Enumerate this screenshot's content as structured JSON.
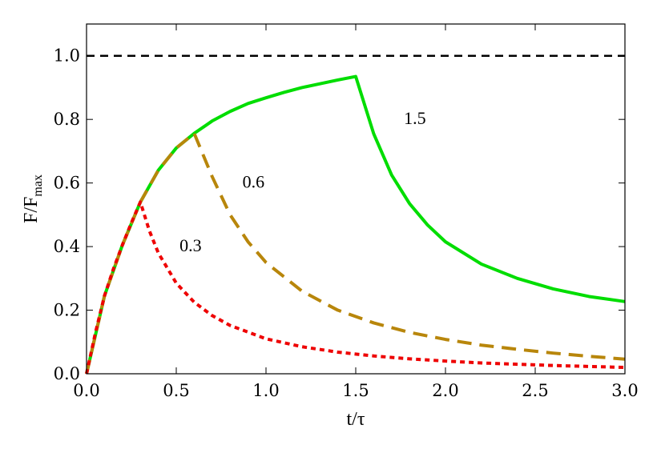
{
  "chart_data": {
    "type": "line",
    "xlabel": "t/τ",
    "ylabel": {
      "base": "F/F",
      "subscript": "max"
    },
    "xlim": [
      0.0,
      3.0
    ],
    "ylim": [
      0.0,
      1.1
    ],
    "xticks": [
      "0.0",
      "0.5",
      "1.0",
      "1.5",
      "2.0",
      "2.5",
      "3.0"
    ],
    "yticks": [
      "0.0",
      "0.2",
      "0.4",
      "0.6",
      "0.8",
      "1.0"
    ],
    "xtick_values": [
      0.0,
      0.5,
      1.0,
      1.5,
      2.0,
      2.5,
      3.0
    ],
    "ytick_values": [
      0.0,
      0.2,
      0.4,
      0.6,
      0.8,
      1.0
    ],
    "grid": false,
    "reference_line": {
      "y": 1.0,
      "color": "#000000",
      "style": "dashed"
    },
    "series": [
      {
        "label": "1.5",
        "color": "#00dd00",
        "style": "solid",
        "x": [
          0.0,
          0.1,
          0.2,
          0.3,
          0.4,
          0.5,
          0.6,
          0.7,
          0.8,
          0.9,
          1.0,
          1.1,
          1.2,
          1.3,
          1.4,
          1.5,
          1.6,
          1.7,
          1.8,
          1.9,
          2.0,
          2.2,
          2.4,
          2.6,
          2.8,
          3.0
        ],
        "y": [
          0.0,
          0.245,
          0.405,
          0.54,
          0.64,
          0.71,
          0.756,
          0.795,
          0.825,
          0.85,
          0.868,
          0.885,
          0.9,
          0.912,
          0.924,
          0.935,
          0.755,
          0.625,
          0.535,
          0.468,
          0.415,
          0.345,
          0.3,
          0.267,
          0.243,
          0.227
        ]
      },
      {
        "label": "0.6",
        "color": "#b8860b",
        "style": "dashed",
        "x": [
          0.0,
          0.1,
          0.2,
          0.3,
          0.4,
          0.5,
          0.6,
          0.7,
          0.8,
          0.9,
          1.0,
          1.2,
          1.4,
          1.6,
          1.8,
          2.0,
          2.2,
          2.4,
          2.6,
          2.8,
          3.0
        ],
        "y": [
          0.0,
          0.245,
          0.405,
          0.54,
          0.64,
          0.71,
          0.756,
          0.62,
          0.5,
          0.415,
          0.35,
          0.26,
          0.2,
          0.16,
          0.13,
          0.108,
          0.09,
          0.077,
          0.065,
          0.055,
          0.046
        ]
      },
      {
        "label": "0.3",
        "color": "#ee0000",
        "style": "dotted",
        "x": [
          0.0,
          0.05,
          0.1,
          0.15,
          0.2,
          0.25,
          0.3,
          0.35,
          0.4,
          0.5,
          0.6,
          0.7,
          0.8,
          1.0,
          1.2,
          1.4,
          1.6,
          1.8,
          2.0,
          2.2,
          2.4,
          2.6,
          2.8,
          3.0
        ],
        "y": [
          0.0,
          0.13,
          0.245,
          0.33,
          0.405,
          0.475,
          0.54,
          0.45,
          0.38,
          0.285,
          0.225,
          0.183,
          0.152,
          0.11,
          0.085,
          0.068,
          0.056,
          0.047,
          0.04,
          0.034,
          0.03,
          0.026,
          0.023,
          0.02
        ]
      }
    ],
    "annotations": [
      {
        "text": "1.5",
        "x": 1.83,
        "y": 0.805
      },
      {
        "text": "0.6",
        "x": 0.93,
        "y": 0.605
      },
      {
        "text": "0.3",
        "x": 0.58,
        "y": 0.405
      }
    ]
  }
}
